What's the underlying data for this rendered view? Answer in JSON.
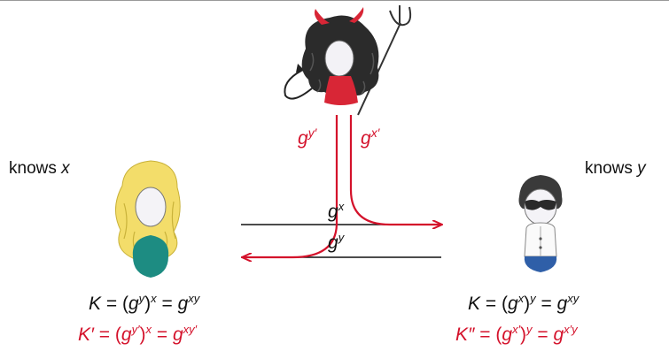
{
  "colors": {
    "attack": "#d4122b",
    "honest": "#111111",
    "alice_hair": "#f3dd6a",
    "alice_body": "#1d8c82",
    "bob_hair": "#3a3a3a",
    "bob_pants": "#2f5fa8",
    "eve_hair": "#2a2a2a",
    "eve_dress": "#d82636"
  },
  "icons": {
    "eve": "devil-attacker-icon",
    "alice": "alice-person-icon",
    "bob": "bob-person-icon"
  },
  "alice": {
    "knows_label": "knows",
    "knows_var": "x",
    "key_eq": {
      "lhs": "K",
      "base": "g",
      "inner_exp": "y",
      "outer_exp": "x",
      "result_exp": "xy"
    },
    "mitm_eq": {
      "lhs": "K′",
      "base": "g",
      "inner_exp": "y′",
      "outer_exp": "x",
      "result_exp": "xy′"
    }
  },
  "bob": {
    "knows_label": "knows",
    "knows_var": "y",
    "key_eq": {
      "lhs": "K",
      "base": "g",
      "inner_exp": "x",
      "outer_exp": "y",
      "result_exp": "xy"
    },
    "mitm_eq": {
      "lhs": "K″",
      "base": "g",
      "inner_exp": "x′",
      "outer_exp": "y",
      "result_exp": "x′y"
    }
  },
  "messages": {
    "to_bob": {
      "base": "g",
      "exp": "x"
    },
    "to_alice": {
      "base": "g",
      "exp": "y"
    }
  },
  "eve": {
    "sends_to_alice": {
      "base": "g",
      "exp": "y′"
    },
    "sends_to_bob": {
      "base": "g",
      "exp": "x′"
    }
  }
}
